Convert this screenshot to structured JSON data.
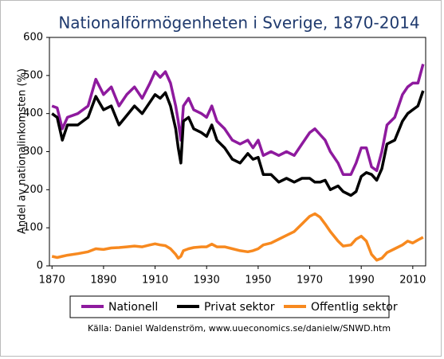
{
  "chart_data": {
    "type": "line",
    "title": "Nationalförmögenheten i Sverige, 1870-2014",
    "y_label": "Andel av nationalinkomsten (%)",
    "source": "Källa: Daniel Waldenström, www.uueconomics.se/danielw/SNWD.htm",
    "x": [
      1870,
      1872,
      1874,
      1876,
      1880,
      1884,
      1887,
      1890,
      1893,
      1896,
      1899,
      1902,
      1905,
      1908,
      1910,
      1912,
      1914,
      1916,
      1918,
      1919,
      1920,
      1921,
      1923,
      1925,
      1928,
      1930,
      1932,
      1934,
      1937,
      1940,
      1943,
      1946,
      1948,
      1950,
      1952,
      1955,
      1958,
      1961,
      1964,
      1967,
      1970,
      1972,
      1974,
      1976,
      1978,
      1981,
      1983,
      1986,
      1988,
      1990,
      1992,
      1994,
      1996,
      1998,
      2000,
      2003,
      2006,
      2008,
      2010,
      2012,
      2014
    ],
    "series": [
      {
        "name": "Nationell",
        "color": "#8e1a9e",
        "values": [
          420,
          415,
          360,
          390,
          400,
          420,
          490,
          450,
          470,
          420,
          450,
          470,
          440,
          480,
          510,
          495,
          510,
          480,
          420,
          380,
          330,
          420,
          440,
          410,
          400,
          390,
          420,
          380,
          360,
          330,
          320,
          330,
          310,
          330,
          290,
          300,
          290,
          300,
          290,
          320,
          350,
          360,
          345,
          330,
          300,
          270,
          240,
          240,
          270,
          310,
          310,
          260,
          250,
          300,
          370,
          390,
          450,
          470,
          480,
          480,
          530
        ]
      },
      {
        "name": "Privat sektor",
        "color": "#000000",
        "values": [
          400,
          390,
          330,
          370,
          370,
          390,
          445,
          410,
          420,
          370,
          395,
          420,
          400,
          430,
          450,
          440,
          455,
          420,
          360,
          310,
          270,
          380,
          390,
          360,
          350,
          340,
          370,
          330,
          310,
          280,
          270,
          295,
          280,
          285,
          240,
          240,
          220,
          230,
          220,
          230,
          230,
          220,
          220,
          225,
          200,
          210,
          195,
          185,
          195,
          235,
          245,
          240,
          225,
          255,
          320,
          330,
          380,
          400,
          410,
          420,
          460
        ]
      },
      {
        "name": "Offentlig sektor",
        "color": "#f7891f",
        "values": [
          25,
          22,
          25,
          28,
          32,
          37,
          45,
          43,
          47,
          48,
          50,
          52,
          50,
          55,
          58,
          55,
          53,
          45,
          30,
          20,
          25,
          40,
          45,
          48,
          50,
          50,
          57,
          50,
          50,
          45,
          40,
          37,
          40,
          45,
          55,
          60,
          70,
          80,
          90,
          110,
          130,
          137,
          128,
          110,
          90,
          65,
          52,
          55,
          70,
          78,
          65,
          30,
          15,
          20,
          35,
          45,
          55,
          65,
          60,
          68,
          75
        ]
      }
    ],
    "xlim": [
      1869,
      2015
    ],
    "xticks": [
      1870,
      1890,
      1910,
      1930,
      1950,
      1970,
      1990,
      2010
    ],
    "ylim": [
      0,
      600
    ],
    "yticks": [
      0,
      100,
      200,
      300,
      400,
      500,
      600
    ],
    "legend": "bottom"
  }
}
